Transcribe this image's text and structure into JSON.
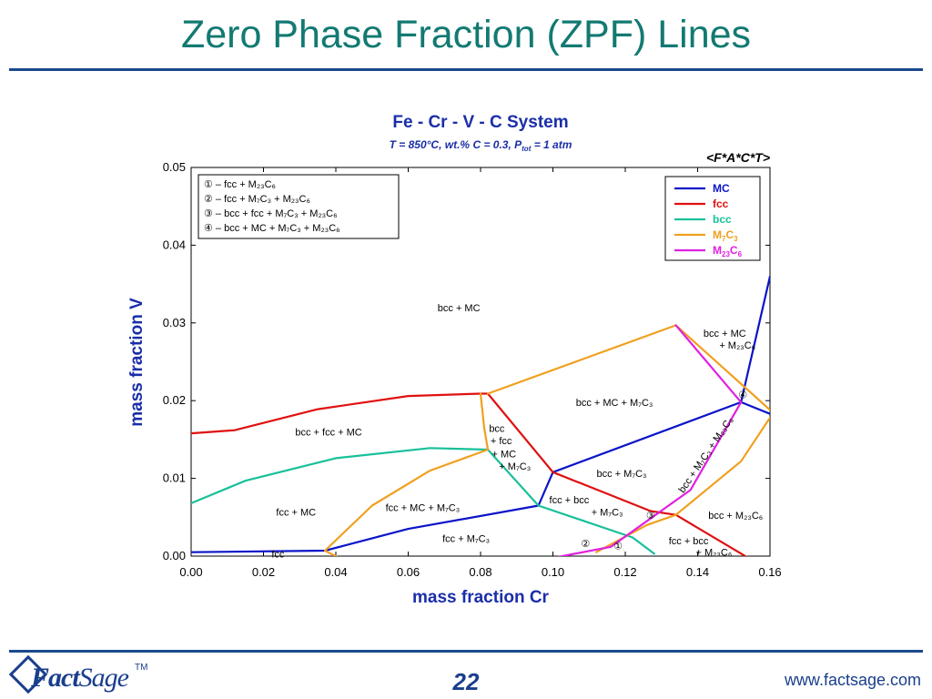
{
  "slide": {
    "title": "Zero Phase Fraction (ZPF) Lines",
    "page_number": "22",
    "url": "www.factsage.com",
    "logo_text_a": "Fact",
    "logo_text_b": "Sage",
    "logo_tm": "TM"
  },
  "chart_data": {
    "type": "line",
    "title": "Fe - Cr - V - C System",
    "subtitle": "T = 850°C, wt.% C = 0.3, Ptot = 1 atm",
    "tag": "<F*A*C*T>",
    "xlabel": "mass fraction Cr",
    "ylabel": "mass fraction V",
    "xlim": [
      0.0,
      0.16
    ],
    "ylim": [
      0.0,
      0.05
    ],
    "x_ticks": [
      0.0,
      0.02,
      0.04,
      0.06,
      0.08,
      0.1,
      0.12,
      0.14,
      0.16
    ],
    "x_tick_labels": [
      "0.00",
      "0.02",
      "0.04",
      "0.06",
      "0.08",
      "0.10",
      "0.12",
      "0.14",
      "0.16"
    ],
    "y_ticks": [
      0.0,
      0.01,
      0.02,
      0.03,
      0.04,
      0.05
    ],
    "y_tick_labels": [
      "0.00",
      "0.01",
      "0.02",
      "0.03",
      "0.04",
      "0.05"
    ],
    "colors": {
      "MC": "#0a14c8",
      "fcc": "#e01010",
      "bcc": "#18c09a",
      "M7C3": "#f0a020",
      "M23C6": "#e020e0"
    },
    "legend_placement": "top-right",
    "legend": [
      {
        "key": "MC",
        "label": "MC",
        "sub": ""
      },
      {
        "key": "fcc",
        "label": "fcc",
        "sub": ""
      },
      {
        "key": "bcc",
        "label": "bcc",
        "sub": ""
      },
      {
        "key": "M7C3",
        "label": "M",
        "sub": "7",
        "label2": "C",
        "sub2": "3"
      },
      {
        "key": "M23C6",
        "label": "M",
        "sub": "23",
        "label2": "C",
        "sub2": "6"
      }
    ],
    "note_box": [
      {
        "num": "①",
        "text": "– fcc + M₂₃C₆"
      },
      {
        "num": "②",
        "text": "– fcc + M₇C₃ + M₂₃C₆"
      },
      {
        "num": "③",
        "text": "– bcc + fcc + M₇C₃ + M₂₃C₆"
      },
      {
        "num": "④",
        "text": "– bcc + MC + M₇C₃ + M₂₃C₆"
      }
    ],
    "series": [
      {
        "name": "MC",
        "color_key": "MC",
        "segments": [
          [
            [
              0.0,
              0.0005
            ],
            [
              0.037,
              0.0007
            ],
            [
              0.06,
              0.0035
            ],
            [
              0.096,
              0.0065
            ],
            [
              0.1,
              0.0108
            ],
            [
              0.152,
              0.0198
            ],
            [
              0.16,
              0.0183
            ]
          ],
          [
            [
              0.152,
              0.0198
            ],
            [
              0.16,
              0.036
            ]
          ]
        ]
      },
      {
        "name": "fcc",
        "color_key": "fcc",
        "segments": [
          [
            [
              0.0,
              0.0158
            ],
            [
              0.012,
              0.0162
            ],
            [
              0.035,
              0.0189
            ],
            [
              0.06,
              0.0206
            ],
            [
              0.08,
              0.0209
            ],
            [
              0.082,
              0.0209
            ],
            [
              0.1,
              0.0108
            ],
            [
              0.127,
              0.0058
            ],
            [
              0.134,
              0.0053
            ],
            [
              0.155,
              -0.0005
            ]
          ]
        ]
      },
      {
        "name": "bcc",
        "color_key": "bcc",
        "segments": [
          [
            [
              0.0,
              0.0068
            ],
            [
              0.015,
              0.0097
            ],
            [
              0.04,
              0.0126
            ],
            [
              0.066,
              0.0139
            ],
            [
              0.082,
              0.0137
            ],
            [
              0.096,
              0.0065
            ],
            [
              0.122,
              0.0024
            ],
            [
              0.128,
              0.0003
            ]
          ]
        ]
      },
      {
        "name": "M7C3",
        "color_key": "M7C3",
        "segments": [
          [
            [
              0.037,
              0.0007
            ],
            [
              0.05,
              0.0065
            ],
            [
              0.066,
              0.011
            ],
            [
              0.082,
              0.0137
            ]
          ],
          [
            [
              0.08,
              0.0209
            ],
            [
              0.081,
              0.0165
            ],
            [
              0.082,
              0.0137
            ]
          ],
          [
            [
              0.082,
              0.0209
            ],
            [
              0.134,
              0.0297
            ]
          ],
          [
            [
              0.134,
              0.0297
            ],
            [
              0.16,
              0.0188
            ]
          ],
          [
            [
              0.112,
              0.0005
            ],
            [
              0.126,
              0.004
            ],
            [
              0.134,
              0.0053
            ],
            [
              0.152,
              0.0122
            ],
            [
              0.16,
              0.0178
            ]
          ],
          [
            [
              0.037,
              0.0007
            ],
            [
              0.042,
              -0.0005
            ]
          ]
        ]
      },
      {
        "name": "M23C6",
        "color_key": "M23C6",
        "segments": [
          [
            [
              0.134,
              0.0297
            ],
            [
              0.152,
              0.0198
            ]
          ],
          [
            [
              0.152,
              0.0198
            ],
            [
              0.138,
              0.0085
            ],
            [
              0.116,
              0.0012
            ],
            [
              0.097,
              -0.0005
            ]
          ]
        ]
      }
    ],
    "region_labels": [
      {
        "text": "bcc + MC",
        "x": 0.074,
        "y": 0.0315
      },
      {
        "text": "bcc + fcc + MC",
        "x": 0.038,
        "y": 0.0155
      },
      {
        "text": "fcc + MC",
        "x": 0.029,
        "y": 0.0052
      },
      {
        "text": "fcc",
        "x": 0.024,
        "y": -0.0002
      },
      {
        "text": "fcc + MC + M₇C₃",
        "x": 0.064,
        "y": 0.0058
      },
      {
        "text": "fcc + M₇C₃",
        "x": 0.076,
        "y": 0.0018
      },
      {
        "text": "bcc",
        "x": 0.0845,
        "y": 0.016
      },
      {
        "text": "+ fcc",
        "x": 0.0857,
        "y": 0.0144
      },
      {
        "text": "+ MC",
        "x": 0.0865,
        "y": 0.0127
      },
      {
        "text": "+ M₇C₃",
        "x": 0.0895,
        "y": 0.0111
      },
      {
        "text": "bcc + MC + M₇C₃",
        "x": 0.117,
        "y": 0.0193
      },
      {
        "text": "bcc + M₇C₃",
        "x": 0.119,
        "y": 0.0102
      },
      {
        "text": "fcc + bcc",
        "x": 0.1045,
        "y": 0.0068
      },
      {
        "text": "+ M₇C₃",
        "x": 0.115,
        "y": 0.0052
      },
      {
        "text": "bcc + M₂₃C₆",
        "x": 0.1505,
        "y": 0.0048
      },
      {
        "text": "fcc + bcc",
        "x": 0.1375,
        "y": 0.0015
      },
      {
        "text": "+ M₂₃C₆",
        "x": 0.1445,
        "y": 5e-05
      },
      {
        "text": "bcc + MC",
        "x": 0.1475,
        "y": 0.0282
      },
      {
        "text": "+ M₂₃C₆",
        "x": 0.151,
        "y": 0.0267
      },
      {
        "text": "bcc + M₇C₃ + M₂₃C₆",
        "x": 0.143,
        "y": 0.0128,
        "rotate": -56
      }
    ],
    "point_labels": [
      {
        "text": "④",
        "x": 0.1525,
        "y": 0.0203
      },
      {
        "text": "③",
        "x": 0.127,
        "y": 0.0048
      },
      {
        "text": "②",
        "x": 0.109,
        "y": 0.0012
      },
      {
        "text": "①",
        "x": 0.118,
        "y": 0.0009
      }
    ]
  }
}
